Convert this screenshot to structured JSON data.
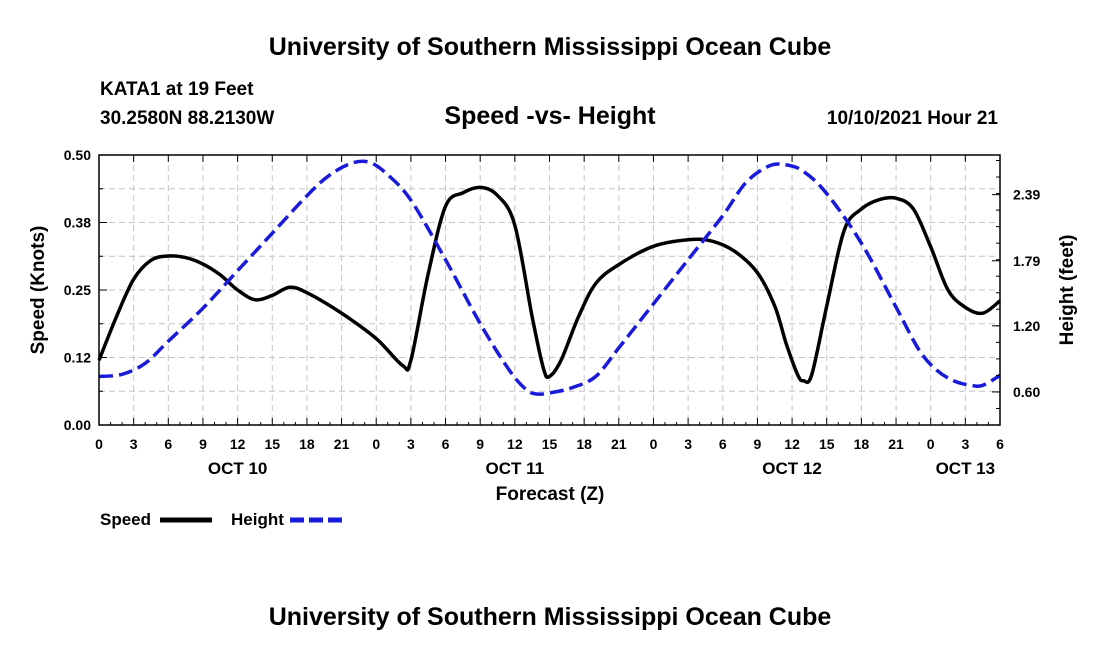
{
  "page": {
    "title_top": "University of Southern Mississippi Ocean Cube",
    "title_bottom": "University of Southern Mississippi Ocean Cube",
    "station": "KATA1 at 19 Feet",
    "coords": "30.2580N  88.2130W",
    "date": "10/10/2021 Hour 21"
  },
  "chart_data": {
    "type": "line",
    "title": "Speed -vs- Height",
    "xlabel": "Forecast (Z)",
    "ylabel_left": "Speed (Knots)",
    "ylabel_right": "Height (feet)",
    "x_range_hours": [
      0,
      78
    ],
    "ylim_left": [
      0.0,
      0.5
    ],
    "yticks_left": [
      {
        "value": 0.0,
        "label": "0.00"
      },
      {
        "value": 0.125,
        "label": "0.12"
      },
      {
        "value": 0.25,
        "label": "0.25"
      },
      {
        "value": 0.375,
        "label": "0.38"
      },
      {
        "value": 0.5,
        "label": "0.50"
      }
    ],
    "ylim_right": [
      0.3,
      2.75
    ],
    "yticks_right": [
      {
        "value": 0.6,
        "label": "0.60"
      },
      {
        "value": 1.2,
        "label": "1.20"
      },
      {
        "value": 1.79,
        "label": "1.79"
      },
      {
        "value": 2.39,
        "label": "2.39"
      }
    ],
    "xticks": [
      {
        "h": 0,
        "label": "0"
      },
      {
        "h": 3,
        "label": "3"
      },
      {
        "h": 6,
        "label": "6"
      },
      {
        "h": 9,
        "label": "9"
      },
      {
        "h": 12,
        "label": "12"
      },
      {
        "h": 15,
        "label": "15"
      },
      {
        "h": 18,
        "label": "18"
      },
      {
        "h": 21,
        "label": "21"
      },
      {
        "h": 24,
        "label": "0"
      },
      {
        "h": 27,
        "label": "3"
      },
      {
        "h": 30,
        "label": "6"
      },
      {
        "h": 33,
        "label": "9"
      },
      {
        "h": 36,
        "label": "12"
      },
      {
        "h": 39,
        "label": "15"
      },
      {
        "h": 42,
        "label": "18"
      },
      {
        "h": 45,
        "label": "21"
      },
      {
        "h": 48,
        "label": "0"
      },
      {
        "h": 51,
        "label": "3"
      },
      {
        "h": 54,
        "label": "6"
      },
      {
        "h": 57,
        "label": "9"
      },
      {
        "h": 60,
        "label": "12"
      },
      {
        "h": 63,
        "label": "15"
      },
      {
        "h": 66,
        "label": "18"
      },
      {
        "h": 69,
        "label": "21"
      },
      {
        "h": 72,
        "label": "0"
      },
      {
        "h": 75,
        "label": "3"
      },
      {
        "h": 78,
        "label": "6"
      }
    ],
    "date_labels": [
      {
        "h": 12,
        "label": "OCT 10"
      },
      {
        "h": 36,
        "label": "OCT 11"
      },
      {
        "h": 60,
        "label": "OCT 12"
      },
      {
        "h": 75,
        "label": "OCT 13"
      }
    ],
    "series": [
      {
        "name": "Speed",
        "axis": "left",
        "color": "#000000",
        "dash": false,
        "points": [
          [
            0,
            0.12
          ],
          [
            1.5,
            0.2
          ],
          [
            3,
            0.27
          ],
          [
            4.5,
            0.305
          ],
          [
            6,
            0.313
          ],
          [
            7.5,
            0.31
          ],
          [
            9,
            0.298
          ],
          [
            10.5,
            0.278
          ],
          [
            12,
            0.25
          ],
          [
            13.5,
            0.232
          ],
          [
            15,
            0.24
          ],
          [
            16.5,
            0.255
          ],
          [
            18,
            0.245
          ],
          [
            21,
            0.207
          ],
          [
            24,
            0.16
          ],
          [
            26.3,
            0.11
          ],
          [
            27,
            0.12
          ],
          [
            28.5,
            0.28
          ],
          [
            30,
            0.405
          ],
          [
            31.5,
            0.43
          ],
          [
            33,
            0.44
          ],
          [
            34.5,
            0.425
          ],
          [
            36,
            0.37
          ],
          [
            37.5,
            0.2
          ],
          [
            38.5,
            0.103
          ],
          [
            39,
            0.09
          ],
          [
            40,
            0.12
          ],
          [
            41.5,
            0.2
          ],
          [
            43,
            0.262
          ],
          [
            45,
            0.297
          ],
          [
            48,
            0.331
          ],
          [
            51,
            0.343
          ],
          [
            53,
            0.341
          ],
          [
            55,
            0.322
          ],
          [
            57,
            0.282
          ],
          [
            58.5,
            0.22
          ],
          [
            59.5,
            0.15
          ],
          [
            60.5,
            0.092
          ],
          [
            61,
            0.082
          ],
          [
            61.7,
            0.093
          ],
          [
            63,
            0.22
          ],
          [
            64.5,
            0.36
          ],
          [
            66,
            0.4
          ],
          [
            67.5,
            0.417
          ],
          [
            69,
            0.42
          ],
          [
            70.5,
            0.4
          ],
          [
            72,
            0.33
          ],
          [
            73.5,
            0.25
          ],
          [
            75,
            0.218
          ],
          [
            76.5,
            0.207
          ],
          [
            78,
            0.23
          ]
        ]
      },
      {
        "name": "Height",
        "axis": "right",
        "color": "#1a1adb",
        "dash": true,
        "points": [
          [
            0,
            0.74
          ],
          [
            2,
            0.76
          ],
          [
            4,
            0.86
          ],
          [
            6,
            1.06
          ],
          [
            9,
            1.36
          ],
          [
            12,
            1.7
          ],
          [
            15,
            2.04
          ],
          [
            18,
            2.38
          ],
          [
            20,
            2.57
          ],
          [
            22,
            2.68
          ],
          [
            23.5,
            2.68
          ],
          [
            25,
            2.57
          ],
          [
            27,
            2.34
          ],
          [
            30,
            1.8
          ],
          [
            33,
            1.22
          ],
          [
            35.5,
            0.8
          ],
          [
            37,
            0.62
          ],
          [
            38,
            0.58
          ],
          [
            39.5,
            0.6
          ],
          [
            41,
            0.64
          ],
          [
            43,
            0.74
          ],
          [
            45,
            1.0
          ],
          [
            48,
            1.4
          ],
          [
            51,
            1.8
          ],
          [
            54,
            2.2
          ],
          [
            56,
            2.5
          ],
          [
            58,
            2.65
          ],
          [
            59.5,
            2.66
          ],
          [
            61,
            2.6
          ],
          [
            63,
            2.4
          ],
          [
            66,
            1.95
          ],
          [
            69,
            1.37
          ],
          [
            71,
            0.98
          ],
          [
            72.5,
            0.8
          ],
          [
            74,
            0.7
          ],
          [
            75.5,
            0.66
          ],
          [
            76.5,
            0.66
          ],
          [
            78,
            0.75
          ]
        ]
      }
    ],
    "legend": [
      {
        "name": "Speed",
        "color": "#000000",
        "dash": false
      },
      {
        "name": "Height",
        "color": "#1a1adb",
        "dash": true
      }
    ],
    "legend_position": "bottom-left",
    "grid": true
  }
}
